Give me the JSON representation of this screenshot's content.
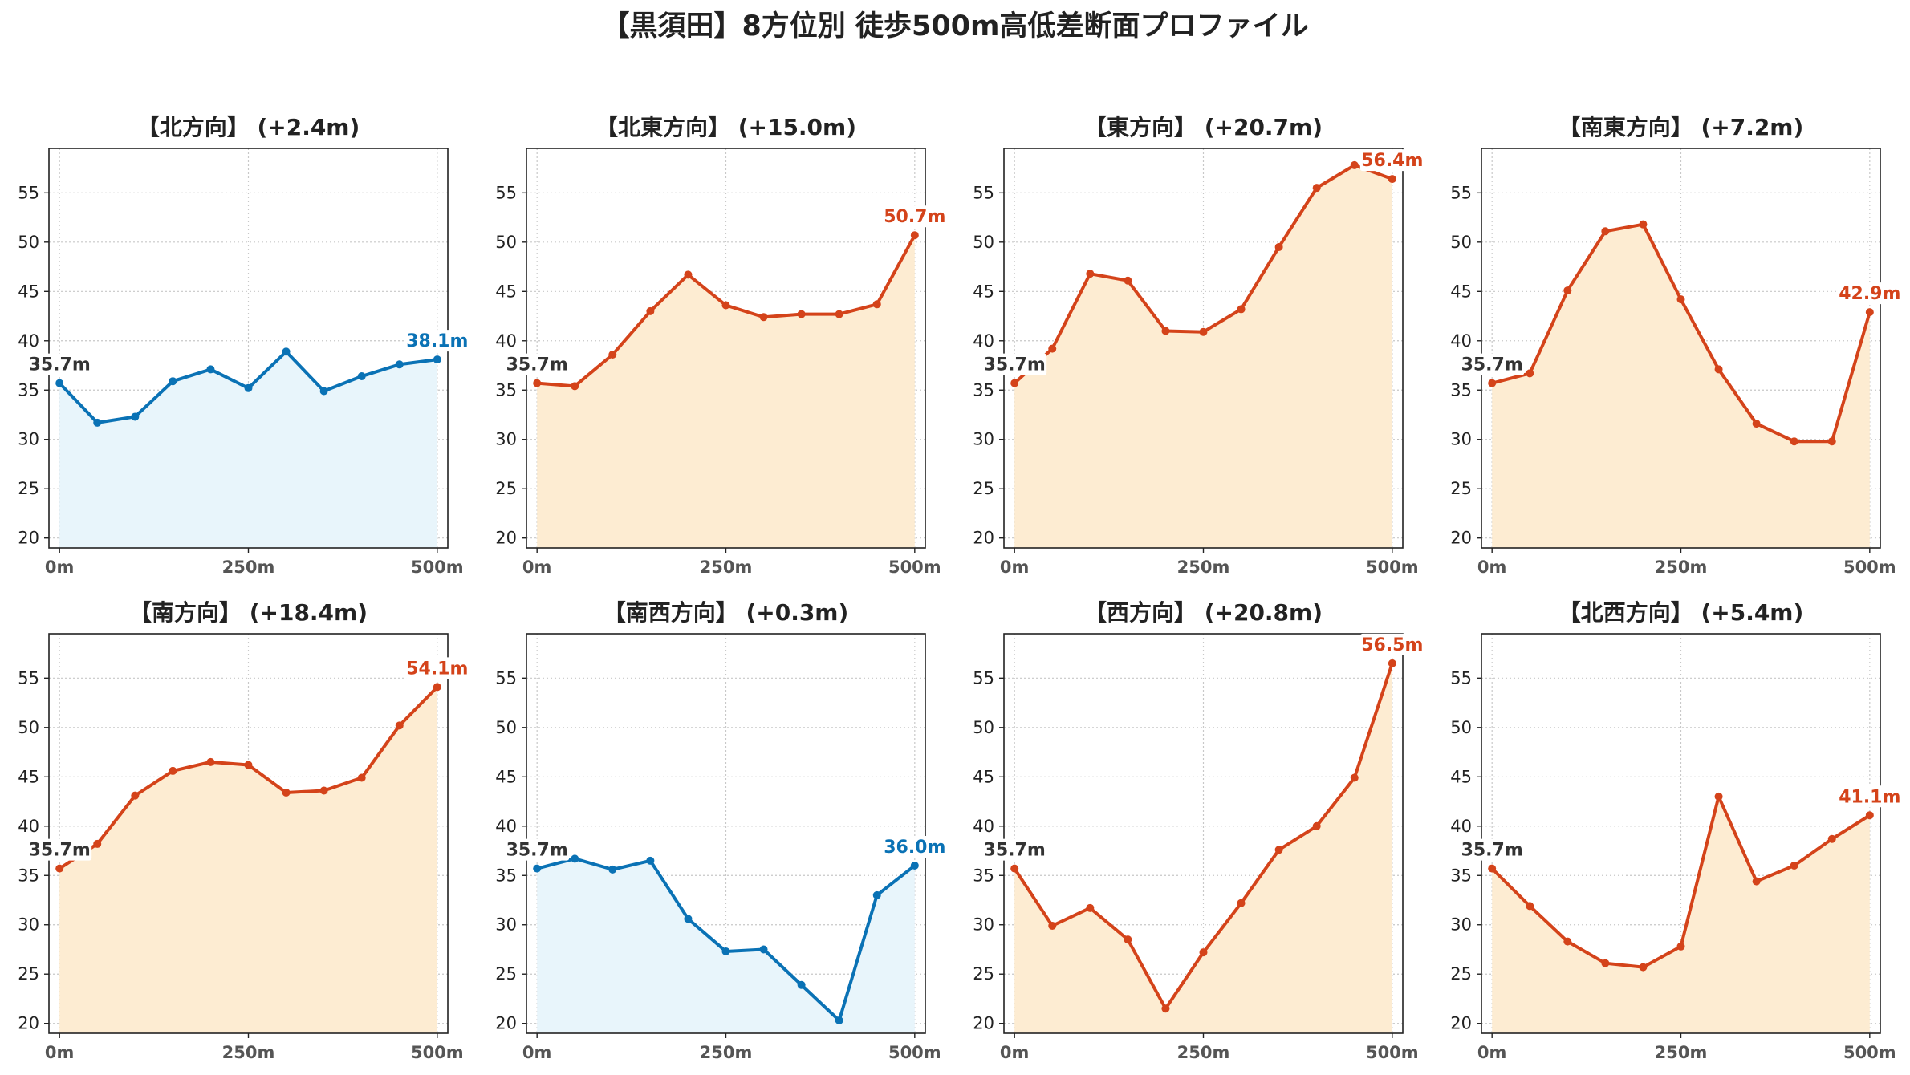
{
  "figure_title": "【黒須田】8方位別 徒歩500m高低差断面プロファイル",
  "colors": {
    "up_line": "#d4431a",
    "up_fill": "#fdecd2",
    "down_line": "#0a72b5",
    "down_fill": "#e8f5fb",
    "start_label": "#333333",
    "grid": "#c8c8c8"
  },
  "chart_data": [
    {
      "type": "area",
      "title": "【北方向】 (+2.4m)",
      "trend": "down",
      "x": [
        0,
        50,
        100,
        150,
        200,
        250,
        300,
        350,
        400,
        450,
        500
      ],
      "values": [
        35.7,
        31.7,
        32.3,
        35.9,
        37.1,
        35.2,
        38.9,
        34.9,
        36.4,
        37.6,
        38.1
      ],
      "start_label": "35.7m",
      "end_label": "38.1m",
      "xticks": [
        "0m",
        "250m",
        "500m"
      ],
      "yticks": [
        20,
        25,
        30,
        35,
        40,
        45,
        50,
        55
      ],
      "ylim": [
        19,
        59.5
      ],
      "xlim": [
        -14,
        514
      ],
      "grid": true
    },
    {
      "type": "area",
      "title": "【北東方向】 (+15.0m)",
      "trend": "up",
      "x": [
        0,
        50,
        100,
        150,
        200,
        250,
        300,
        350,
        400,
        450,
        500
      ],
      "values": [
        35.7,
        35.4,
        38.6,
        43.0,
        46.7,
        43.6,
        42.4,
        42.7,
        42.7,
        43.7,
        50.7
      ],
      "start_label": "35.7m",
      "end_label": "50.7m",
      "xticks": [
        "0m",
        "250m",
        "500m"
      ],
      "yticks": [
        20,
        25,
        30,
        35,
        40,
        45,
        50,
        55
      ],
      "ylim": [
        19,
        59.5
      ],
      "xlim": [
        -14,
        514
      ],
      "grid": true
    },
    {
      "type": "area",
      "title": "【東方向】 (+20.7m)",
      "trend": "up",
      "x": [
        0,
        50,
        100,
        150,
        200,
        250,
        300,
        350,
        400,
        450,
        500
      ],
      "values": [
        35.7,
        39.2,
        46.8,
        46.1,
        41.0,
        40.9,
        43.2,
        49.5,
        55.5,
        57.8,
        56.4
      ],
      "start_label": "35.7m",
      "end_label": "56.4m",
      "xticks": [
        "0m",
        "250m",
        "500m"
      ],
      "yticks": [
        20,
        25,
        30,
        35,
        40,
        45,
        50,
        55
      ],
      "ylim": [
        19,
        59.5
      ],
      "xlim": [
        -14,
        514
      ],
      "grid": true
    },
    {
      "type": "area",
      "title": "【南東方向】 (+7.2m)",
      "trend": "up",
      "x": [
        0,
        50,
        100,
        150,
        200,
        250,
        300,
        350,
        400,
        450,
        500
      ],
      "values": [
        35.7,
        36.7,
        45.1,
        51.1,
        51.8,
        44.2,
        37.1,
        31.6,
        29.8,
        29.8,
        42.9
      ],
      "start_label": "35.7m",
      "end_label": "42.9m",
      "xticks": [
        "0m",
        "250m",
        "500m"
      ],
      "yticks": [
        20,
        25,
        30,
        35,
        40,
        45,
        50,
        55
      ],
      "ylim": [
        19,
        59.5
      ],
      "xlim": [
        -14,
        514
      ],
      "grid": true
    },
    {
      "type": "area",
      "title": "【南方向】 (+18.4m)",
      "trend": "up",
      "x": [
        0,
        50,
        100,
        150,
        200,
        250,
        300,
        350,
        400,
        450,
        500
      ],
      "values": [
        35.7,
        38.2,
        43.1,
        45.6,
        46.5,
        46.2,
        43.4,
        43.6,
        44.9,
        50.2,
        54.1
      ],
      "start_label": "35.7m",
      "end_label": "54.1m",
      "xticks": [
        "0m",
        "250m",
        "500m"
      ],
      "yticks": [
        20,
        25,
        30,
        35,
        40,
        45,
        50,
        55
      ],
      "ylim": [
        19,
        59.5
      ],
      "xlim": [
        -14,
        514
      ],
      "grid": true
    },
    {
      "type": "area",
      "title": "【南西方向】 (+0.3m)",
      "trend": "down",
      "x": [
        0,
        50,
        100,
        150,
        200,
        250,
        300,
        350,
        400,
        450,
        500
      ],
      "values": [
        35.7,
        36.7,
        35.6,
        36.5,
        30.6,
        27.3,
        27.5,
        23.9,
        20.3,
        33.0,
        36.0
      ],
      "start_label": "35.7m",
      "end_label": "36.0m",
      "xticks": [
        "0m",
        "250m",
        "500m"
      ],
      "yticks": [
        20,
        25,
        30,
        35,
        40,
        45,
        50,
        55
      ],
      "ylim": [
        19,
        59.5
      ],
      "xlim": [
        -14,
        514
      ],
      "grid": true
    },
    {
      "type": "area",
      "title": "【西方向】 (+20.8m)",
      "trend": "up",
      "x": [
        0,
        50,
        100,
        150,
        200,
        250,
        300,
        350,
        400,
        450,
        500
      ],
      "values": [
        35.7,
        29.9,
        31.7,
        28.5,
        21.5,
        27.2,
        32.2,
        37.6,
        40.0,
        44.9,
        56.5
      ],
      "start_label": "35.7m",
      "end_label": "56.5m",
      "xticks": [
        "0m",
        "250m",
        "500m"
      ],
      "yticks": [
        20,
        25,
        30,
        35,
        40,
        45,
        50,
        55
      ],
      "ylim": [
        19,
        59.5
      ],
      "xlim": [
        -14,
        514
      ],
      "grid": true
    },
    {
      "type": "area",
      "title": "【北西方向】 (+5.4m)",
      "trend": "up",
      "x": [
        0,
        50,
        100,
        150,
        200,
        250,
        300,
        350,
        400,
        450,
        500
      ],
      "values": [
        35.7,
        31.9,
        28.3,
        26.1,
        25.7,
        27.8,
        43.0,
        34.4,
        36.0,
        38.7,
        41.1
      ],
      "start_label": "35.7m",
      "end_label": "41.1m",
      "xticks": [
        "0m",
        "250m",
        "500m"
      ],
      "yticks": [
        20,
        25,
        30,
        35,
        40,
        45,
        50,
        55
      ],
      "ylim": [
        19,
        59.5
      ],
      "xlim": [
        -14,
        514
      ],
      "grid": true
    }
  ]
}
